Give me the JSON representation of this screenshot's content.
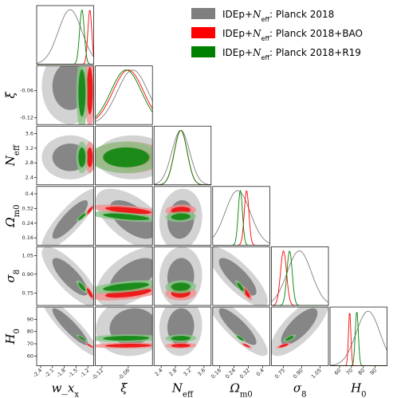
{
  "chart_data": {
    "type": "corner-triangle",
    "parameters": [
      {
        "key": "wx",
        "label": "w_x",
        "sub": "x",
        "ticks": [
          "-2.4",
          "-2.1",
          "-1.8",
          "-1.5",
          "-1.2"
        ],
        "tick_values": [
          -2.4,
          -2.1,
          -1.8,
          -1.5,
          -1.2
        ],
        "range": [
          -2.5,
          -1.05
        ]
      },
      {
        "key": "xi",
        "label": "ξ",
        "sub": "",
        "ticks": [
          "-0.12",
          "-0.06"
        ],
        "tick_values": [
          -0.12,
          -0.06
        ],
        "range": [
          -0.135,
          -0.005
        ]
      },
      {
        "key": "neff",
        "label": "N",
        "sub": "eff",
        "ticks": [
          "2.4",
          "2.8",
          "3.2",
          "3.6"
        ],
        "tick_values": [
          2.4,
          2.8,
          3.2,
          3.6
        ],
        "range": [
          2.2,
          3.8
        ]
      },
      {
        "key": "om",
        "label": "Ω",
        "sub": "m0",
        "ticks": [
          "0.16",
          "0.24",
          "0.32",
          "0.4"
        ],
        "tick_values": [
          0.16,
          0.24,
          0.32,
          0.4
        ],
        "range": [
          0.12,
          0.44
        ]
      },
      {
        "key": "s8",
        "label": "σ",
        "sub": "8",
        "ticks": [
          "0.75",
          "0.90",
          "1.05"
        ],
        "tick_values": [
          0.75,
          0.9,
          1.05
        ],
        "range": [
          0.65,
          1.12
        ]
      },
      {
        "key": "h0",
        "label": "H",
        "sub": "0",
        "ticks": [
          "60",
          "70",
          "80",
          "90"
        ],
        "tick_values": [
          60,
          70,
          80,
          90
        ],
        "range": [
          52,
          100
        ]
      }
    ],
    "series": [
      {
        "name": "IDEp+N_eff: Planck 2018",
        "legend_main": "IDEp+",
        "legend_sub": "eff",
        "legend_rest": ": Planck 2018",
        "color": "#7f7f7f",
        "inner": "#7f7f7f",
        "outer": "#c8c8c8",
        "mean": {
          "wx": -1.65,
          "xi": -0.05,
          "neff": 2.95,
          "om": 0.26,
          "s8": 0.88,
          "h0": 84
        },
        "sd": {
          "wx": 0.3,
          "xi": 0.035,
          "neff": 0.25,
          "om": 0.07,
          "s8": 0.1,
          "h0": 10
        }
      },
      {
        "name": "IDEp+N_eff: Planck 2018+BAO",
        "legend_main": "IDEp+",
        "legend_sub": "eff",
        "legend_rest": ": Planck 2018+BAO",
        "color": "#ff0000",
        "inner": "#ee1111",
        "outer": "#f49090",
        "mean": {
          "wx": -1.15,
          "xi": -0.06,
          "neff": 2.95,
          "om": 0.31,
          "s8": 0.75,
          "h0": 68.5
        },
        "sd": {
          "wx": 0.05,
          "xi": 0.035,
          "neff": 0.18,
          "om": 0.013,
          "s8": 0.025,
          "h0": 1.0
        }
      },
      {
        "name": "IDEp+N_eff: Planck 2018+R19",
        "legend_main": "IDEp+",
        "legend_sub": "eff",
        "legend_rest": ": Planck 2018+R19",
        "color": "#008000",
        "inner": "#118811",
        "outer": "#88c488",
        "mean": {
          "wx": -1.35,
          "xi": -0.065,
          "neff": 2.95,
          "om": 0.275,
          "s8": 0.8,
          "h0": 74.5
        },
        "sd": {
          "wx": 0.06,
          "xi": 0.035,
          "neff": 0.18,
          "om": 0.012,
          "s8": 0.022,
          "h0": 1.3
        }
      }
    ],
    "legend_placement": "top-right",
    "grid": false
  }
}
